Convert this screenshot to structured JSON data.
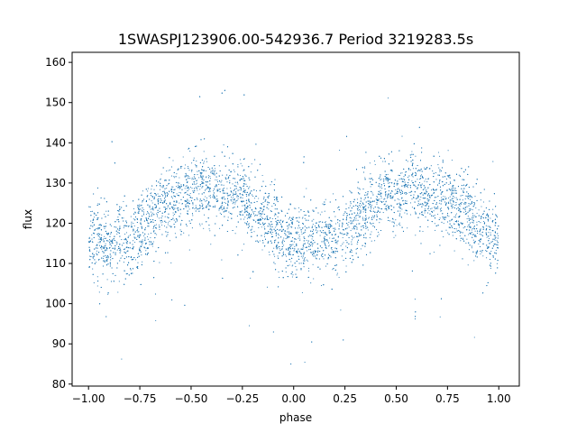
{
  "chart_data": {
    "type": "scatter",
    "title": "1SWASPJ123906.00-542936.7 Period 3219283.5s",
    "xlabel": "phase",
    "ylabel": "flux",
    "xlim": [
      -1.08,
      1.1
    ],
    "ylim": [
      79.5,
      162.5
    ],
    "xticks": [
      -1.0,
      -0.75,
      -0.5,
      -0.25,
      0.0,
      0.25,
      0.5,
      0.75,
      1.0
    ],
    "xtick_labels": [
      "−1.00",
      "−0.75",
      "−0.50",
      "−0.25",
      "0.00",
      "0.25",
      "0.50",
      "0.75",
      "1.00"
    ],
    "yticks": [
      80,
      90,
      100,
      110,
      120,
      130,
      140,
      150,
      160
    ],
    "ytick_labels": [
      "80",
      "90",
      "100",
      "110",
      "120",
      "130",
      "140",
      "150",
      "160"
    ],
    "grid": false,
    "marker_color": "#1f77b4",
    "series": [
      {
        "x": [
          -1.0,
          -0.95,
          -0.9,
          -0.85,
          -0.8,
          -0.75,
          -0.7,
          -0.65,
          -0.6,
          -0.55,
          -0.5,
          -0.45,
          -0.4,
          -0.35,
          -0.3,
          -0.25,
          -0.2,
          -0.15,
          -0.1,
          -0.05,
          0.0,
          0.05,
          0.1,
          0.15,
          0.2,
          0.25,
          0.3,
          0.35,
          0.4,
          0.45,
          0.5,
          0.55,
          0.6,
          0.65,
          0.7,
          0.75,
          0.8,
          0.85,
          0.9,
          0.95,
          1.0
        ],
        "y": [
          115,
          116,
          114,
          117,
          115,
          118,
          121,
          124,
          125,
          127,
          127,
          129,
          128,
          127,
          126,
          126,
          124,
          122,
          119,
          117,
          115,
          116,
          114,
          117,
          115,
          118,
          121,
          124,
          125,
          127,
          127,
          129,
          128,
          127,
          126,
          126,
          124,
          122,
          119,
          117,
          115
        ]
      }
    ]
  }
}
